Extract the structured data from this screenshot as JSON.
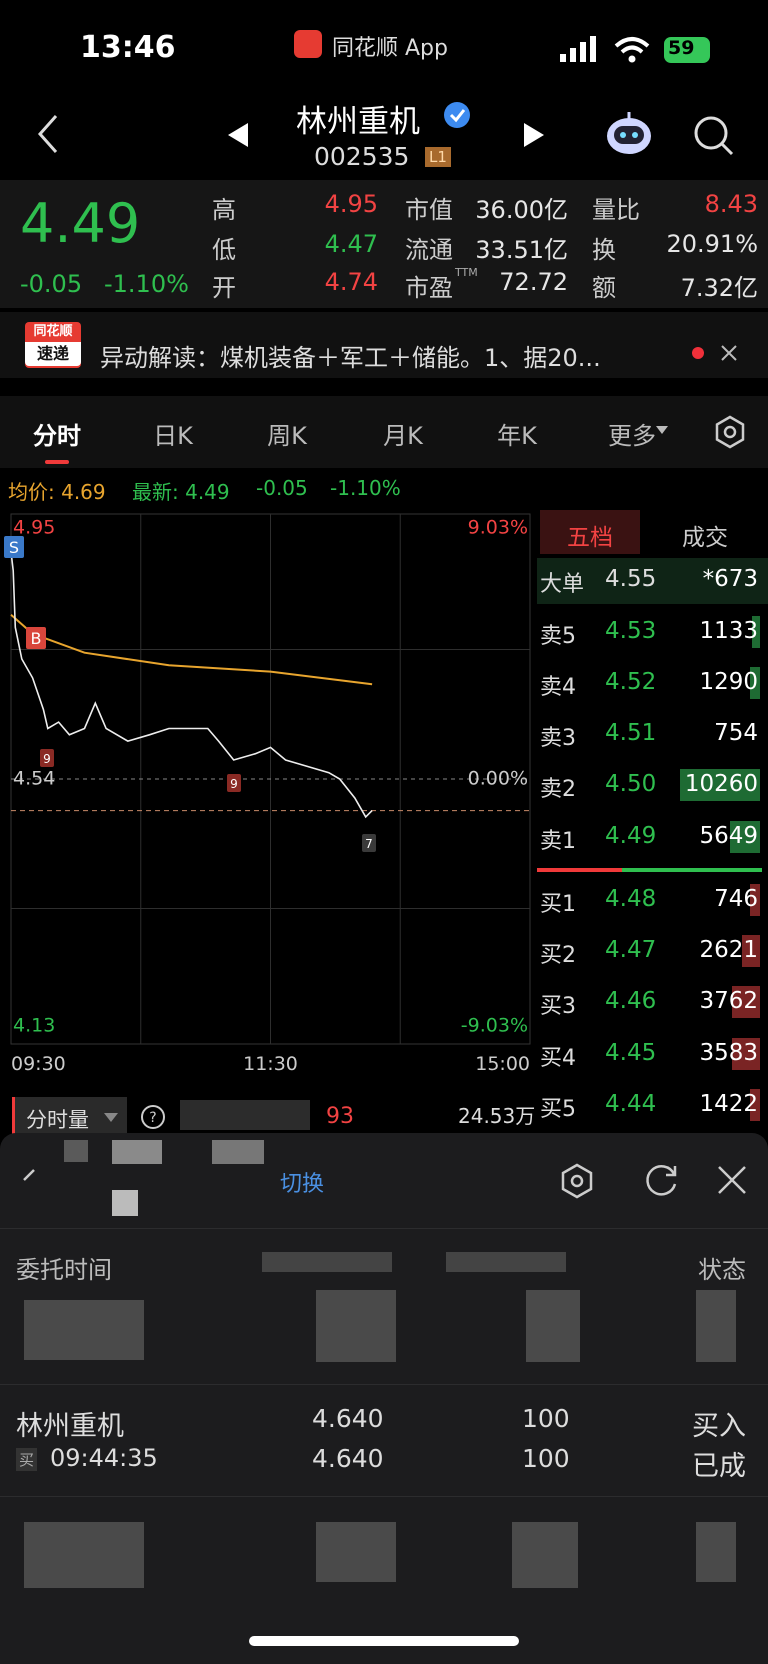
{
  "status": {
    "time": "13:46",
    "app": "同花顺 App",
    "battery": "59"
  },
  "header": {
    "name": "林州重机",
    "code": "002535",
    "level": "L1"
  },
  "quote": {
    "price": "4.49",
    "change": "-0.05",
    "pct": "-1.10%",
    "stats": [
      {
        "label": "高",
        "value": "4.95",
        "tone": "up"
      },
      {
        "label": "低",
        "value": "4.47",
        "tone": "down"
      },
      {
        "label": "开",
        "value": "4.74",
        "tone": "up"
      },
      {
        "label": "市值",
        "value": "36.00亿",
        "tone": "plain"
      },
      {
        "label": "流通",
        "value": "33.51亿",
        "tone": "plain"
      },
      {
        "label": "市盈",
        "sup": "TTM",
        "value": "72.72",
        "tone": "plain"
      },
      {
        "label": "量比",
        "value": "8.43",
        "tone": "up"
      },
      {
        "label": "换",
        "value": "20.91%",
        "tone": "plain"
      },
      {
        "label": "额",
        "value": "7.32亿",
        "tone": "plain"
      }
    ]
  },
  "news": {
    "badge_top": "同花顺",
    "badge_bottom": "速递",
    "text": "异动解读：煤机装备＋军工＋储能。1、据20..."
  },
  "tabs": [
    "分时",
    "日K",
    "周K",
    "月K",
    "年K",
    "更多"
  ],
  "info": {
    "avg": "均价: 4.69",
    "latest": "最新: 4.49",
    "change": "-0.05",
    "pct": "-1.10%"
  },
  "intraday": {
    "xlim": [
      0,
      240
    ],
    "ylim": [
      4.13,
      4.95
    ],
    "yticks": [
      4.95,
      4.54,
      4.13
    ],
    "pct_labels": [
      "9.03%",
      "0.00%",
      "-9.03%"
    ],
    "xticks": [
      {
        "value": 0,
        "label": "09:30"
      },
      {
        "value": 120,
        "label": "11:30"
      },
      {
        "value": 240,
        "label": "15:00"
      }
    ],
    "x": [
      0,
      1,
      2,
      5,
      10,
      15,
      17,
      22,
      27,
      34,
      39,
      44,
      54,
      64,
      73,
      81,
      91,
      96,
      103,
      113,
      120,
      127,
      137,
      147,
      152,
      159,
      164,
      167
    ],
    "price": [
      4.9,
      4.87,
      4.78,
      4.73,
      4.7,
      4.65,
      4.62,
      4.63,
      4.61,
      4.62,
      4.66,
      4.62,
      4.6,
      4.61,
      4.62,
      4.62,
      4.62,
      4.6,
      4.57,
      4.58,
      4.59,
      4.57,
      4.56,
      4.55,
      4.54,
      4.51,
      4.48,
      4.49
    ],
    "avg_x": [
      0,
      10,
      34,
      73,
      120,
      167
    ],
    "avg": [
      4.8,
      4.77,
      4.74,
      4.72,
      4.71,
      4.69
    ],
    "markers": [
      "S",
      "B",
      "9",
      "9",
      "7"
    ]
  },
  "book": {
    "tabs": [
      "五档",
      "成交"
    ],
    "rows": [
      {
        "label": "大单",
        "price": "4.55",
        "qty": "*673"
      },
      {
        "label": "卖5",
        "price": "4.53",
        "qty": "1133"
      },
      {
        "label": "卖4",
        "price": "4.52",
        "qty": "1290"
      },
      {
        "label": "卖3",
        "price": "4.51",
        "qty": "754"
      },
      {
        "label": "卖2",
        "price": "4.50",
        "qty": "10260"
      },
      {
        "label": "卖1",
        "price": "4.49",
        "qty": "5649"
      },
      {
        "label": "买1",
        "price": "4.48",
        "qty": "746"
      },
      {
        "label": "买2",
        "price": "4.47",
        "qty": "2621"
      },
      {
        "label": "买3",
        "price": "4.46",
        "qty": "3762"
      },
      {
        "label": "买4",
        "price": "4.45",
        "qty": "3583"
      },
      {
        "label": "买5",
        "price": "4.44",
        "qty": "1422"
      }
    ]
  },
  "volume": {
    "label": "分时量",
    "value": "93",
    "total": "24.53万"
  },
  "panel": {
    "switch": "切换",
    "head_left": "委托时间",
    "head_right": "状态",
    "order": {
      "name": "林州重机",
      "side_tag": "买",
      "time": "09:44:35",
      "price1": "4.640",
      "price2": "4.640",
      "qty1": "100",
      "qty2": "100",
      "side": "买入",
      "state": "已成"
    }
  }
}
